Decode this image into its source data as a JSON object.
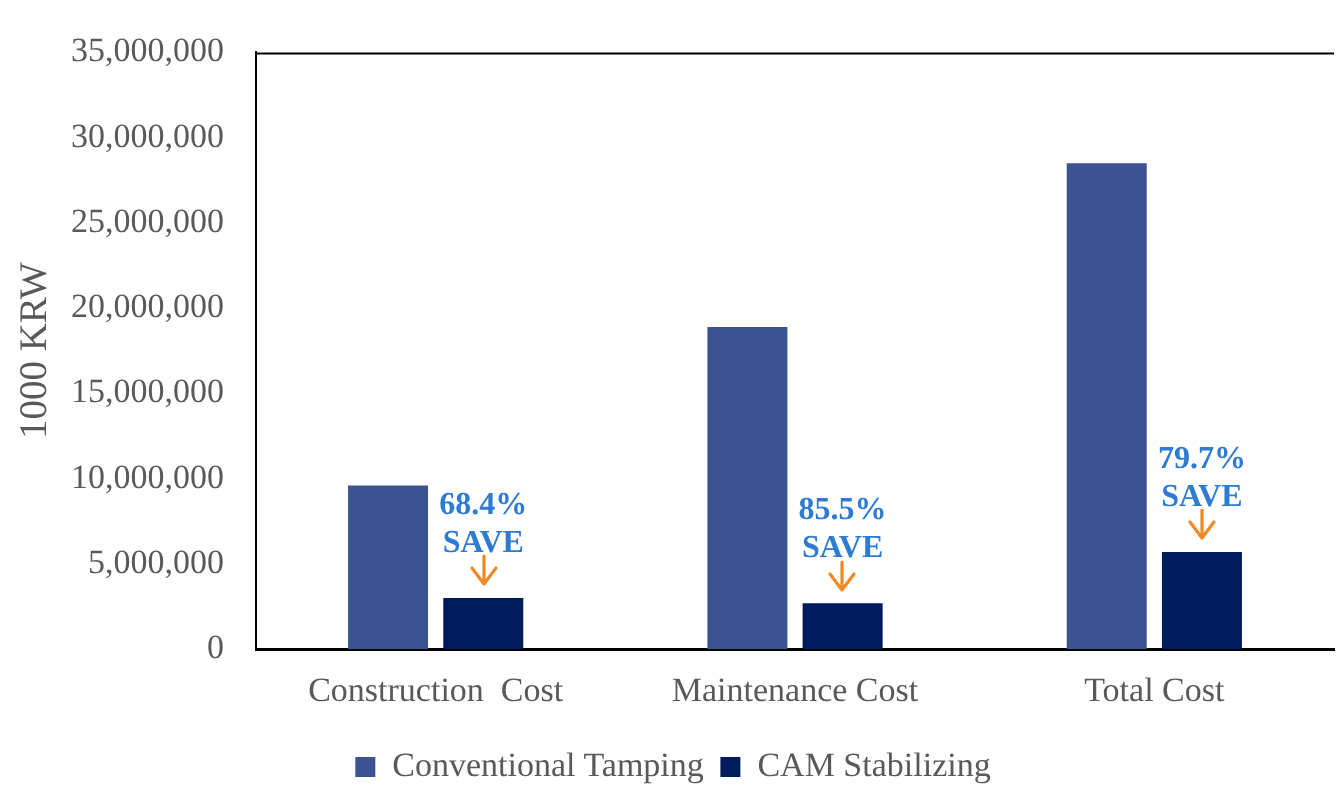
{
  "chart_data": {
    "type": "bar",
    "ylabel": "1000 KRW",
    "categories": [
      "Construction  Cost",
      "Maintenance Cost",
      "Total Cost"
    ],
    "series": [
      {
        "name": "Conventional Tamping",
        "color": "#3b5390",
        "values": [
          9600000,
          18900000,
          28500000
        ]
      },
      {
        "name": "CAM Stabilizing",
        "color": "#001a5e",
        "values": [
          3000000,
          2700000,
          5700000
        ]
      }
    ],
    "ylim": [
      0,
      35000000
    ],
    "yticks": [
      {
        "value": 0,
        "label": "0"
      },
      {
        "value": 5000000,
        "label": "5,000,000"
      },
      {
        "value": 10000000,
        "label": "10,000,000"
      },
      {
        "value": 15000000,
        "label": "15,000,000"
      },
      {
        "value": 20000000,
        "label": "20,000,000"
      },
      {
        "value": 25000000,
        "label": "25,000,000"
      },
      {
        "value": 30000000,
        "label": "30,000,000"
      },
      {
        "value": 35000000,
        "label": "35,000,000"
      }
    ],
    "annotations": [
      {
        "text": "68.4%\nSAVE",
        "x": "Construction  Cost",
        "y": 3000000
      },
      {
        "text": "85.5%\nSAVE",
        "x": "Maintenance Cost",
        "y": 2700000
      },
      {
        "text": "79.7%\nSAVE",
        "x": "Total Cost",
        "y": 5700000
      }
    ],
    "grid": false,
    "legend": "bottom"
  }
}
